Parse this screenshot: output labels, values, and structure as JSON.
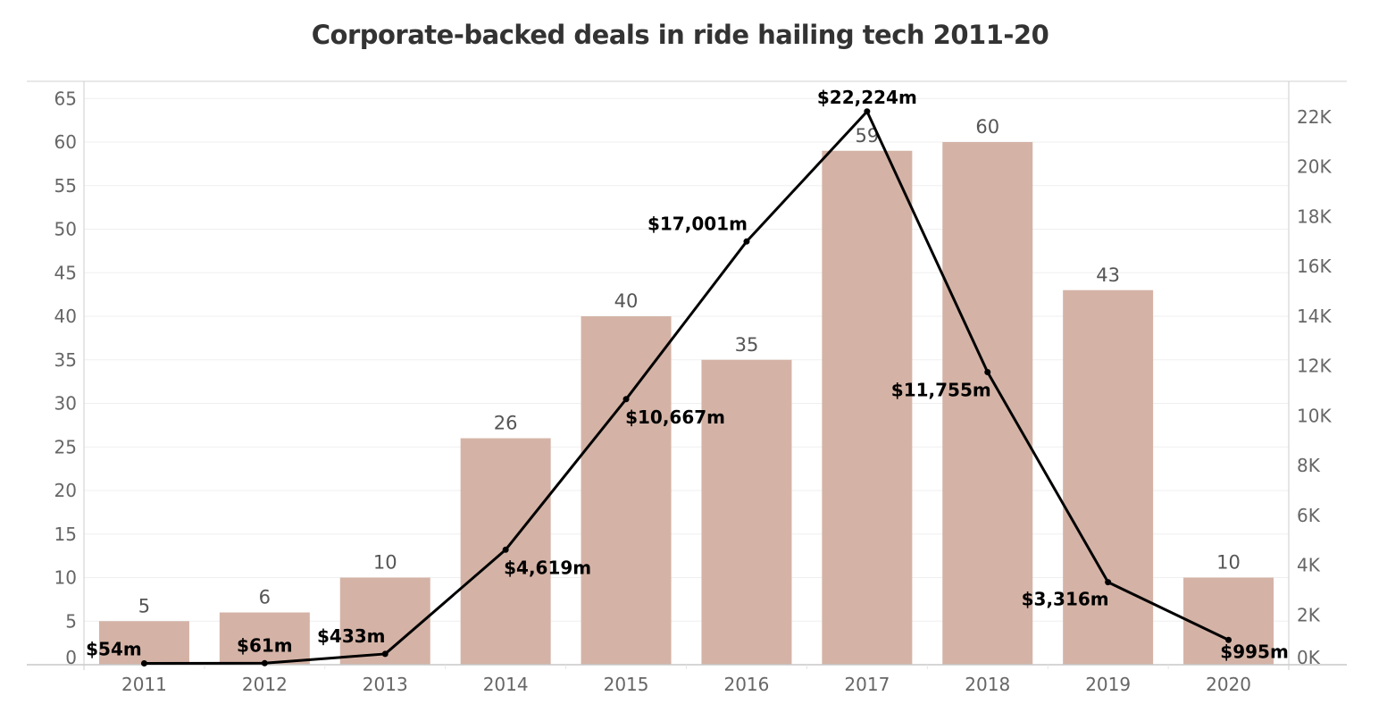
{
  "chart_data": {
    "type": "bar+line",
    "title": "Corporate-backed deals in ride hailing tech 2011-20",
    "xlabel": "",
    "ylabel": "",
    "y2label": "",
    "categories": [
      "2011",
      "2012",
      "2013",
      "2014",
      "2015",
      "2016",
      "2017",
      "2018",
      "2019",
      "2020"
    ],
    "series": [
      {
        "name": "Deals",
        "type": "bar",
        "axis": "left",
        "color": "#d4b3a6",
        "values": [
          5,
          6,
          10,
          26,
          40,
          35,
          59,
          60,
          43,
          10
        ],
        "labels": [
          "5",
          "6",
          "10",
          "26",
          "40",
          "35",
          "59",
          "60",
          "43",
          "10"
        ]
      },
      {
        "name": "Funding ($m)",
        "type": "line",
        "axis": "right",
        "color": "#000000",
        "values": [
          54,
          61,
          433,
          4619,
          10667,
          17001,
          22224,
          11755,
          3316,
          995
        ],
        "labels": [
          "$54m",
          "$61m",
          "$433m",
          "$4,619m",
          "$10,667m",
          "$17,001m",
          "$22,224m",
          "$11,755m",
          "$3,316m",
          "$995m"
        ]
      }
    ],
    "y_axis": {
      "range": [
        0,
        65
      ],
      "ticks": [
        0,
        5,
        10,
        15,
        20,
        25,
        30,
        35,
        40,
        45,
        50,
        55,
        60,
        65
      ],
      "tick_labels": [
        "0",
        "5",
        "10",
        "15",
        "20",
        "25",
        "30",
        "35",
        "40",
        "45",
        "50",
        "55",
        "60",
        "65"
      ]
    },
    "y2_axis": {
      "range": [
        0,
        23000
      ],
      "ticks": [
        0,
        2000,
        4000,
        6000,
        8000,
        10000,
        12000,
        14000,
        16000,
        18000,
        20000,
        22000
      ],
      "tick_labels": [
        "0K",
        "2K",
        "4K",
        "6K",
        "8K",
        "10K",
        "12K",
        "14K",
        "16K",
        "18K",
        "20K",
        "22K"
      ]
    },
    "grid": true,
    "legend": "none"
  }
}
